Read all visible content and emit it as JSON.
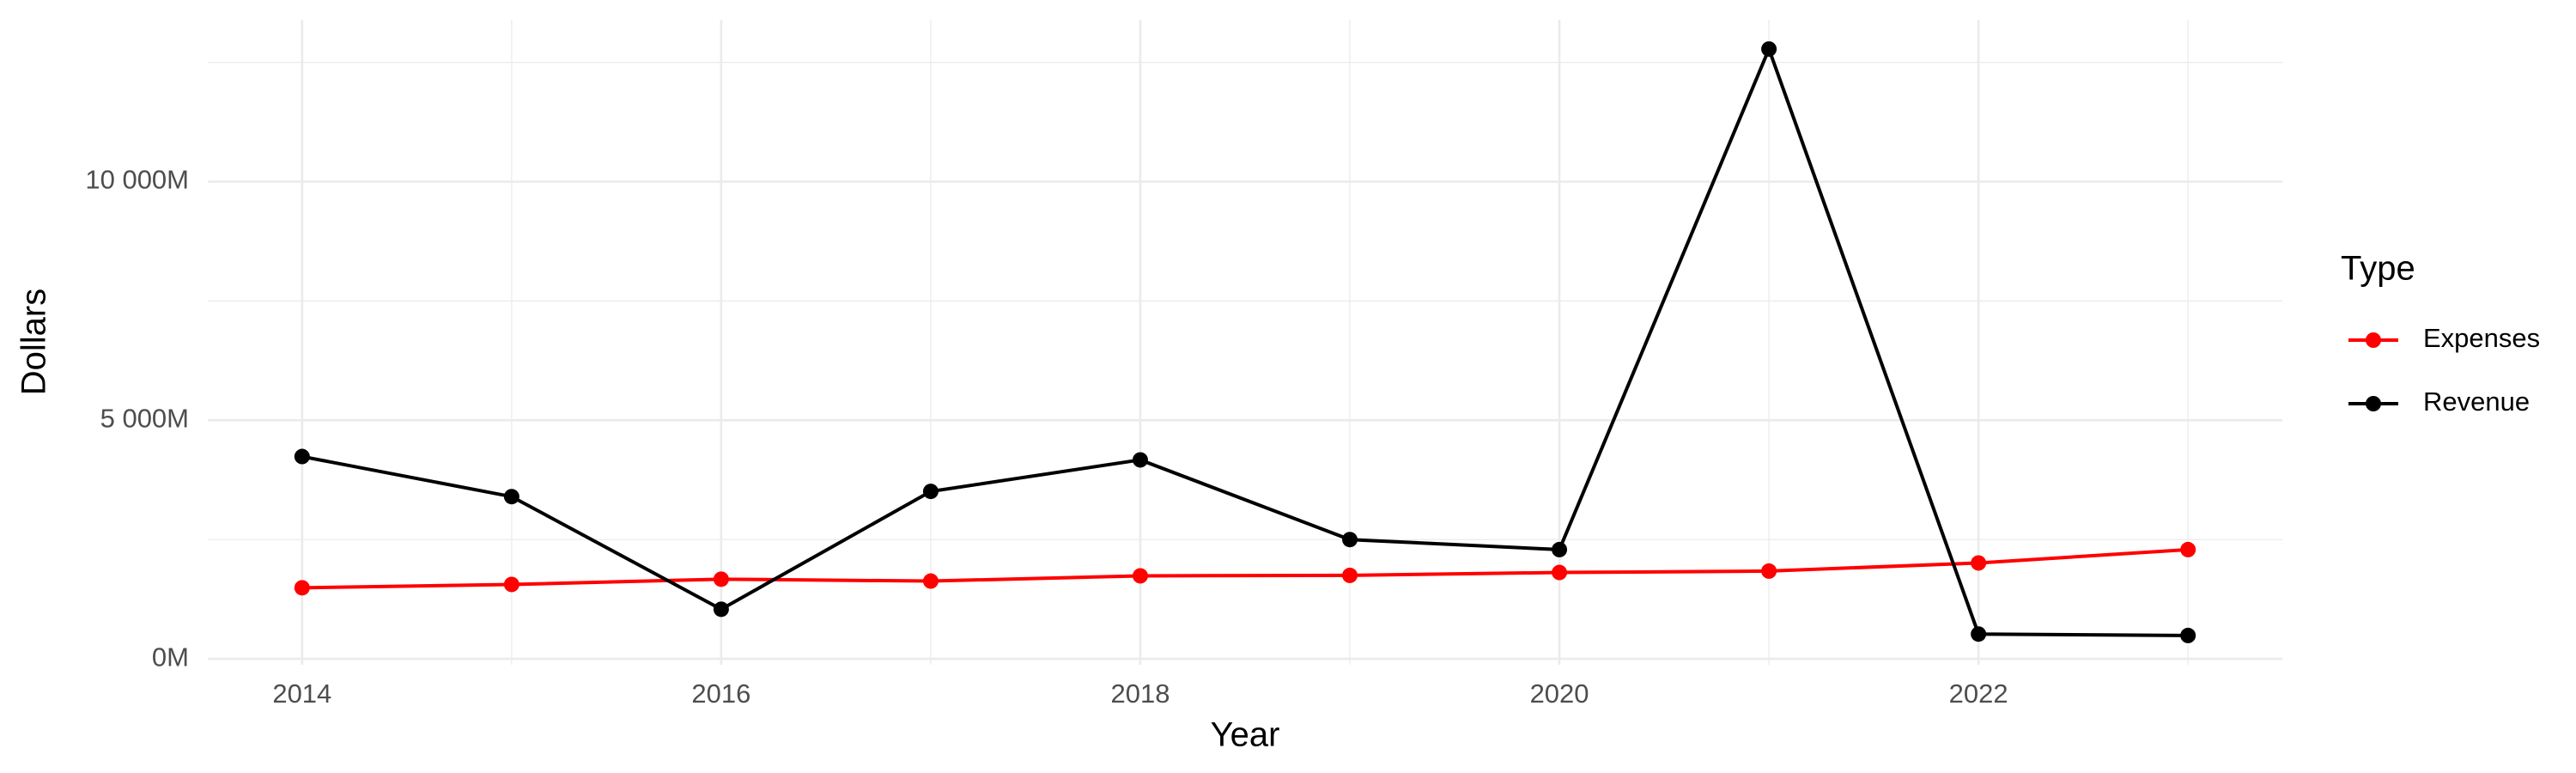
{
  "chart_data": {
    "type": "line",
    "x_label": "Year",
    "y_label": "Dollars",
    "legend_title": "Type",
    "x": [
      2014,
      2015,
      2016,
      2017,
      2018,
      2019,
      2020,
      2021,
      2022,
      2023
    ],
    "series": [
      {
        "name": "Expenses",
        "color": "#ff0000",
        "values": [
          1490,
          1560,
          1670,
          1630,
          1740,
          1750,
          1810,
          1840,
          2010,
          2290
        ]
      },
      {
        "name": "Revenue",
        "color": "#000000",
        "values": [
          4240,
          3400,
          1040,
          3510,
          4170,
          2500,
          2290,
          12780,
          520,
          490
        ]
      }
    ],
    "xlim": [
      2013.55,
      2023.45
    ],
    "xticks": [
      2014,
      2016,
      2018,
      2020,
      2022
    ],
    "ylim": [
      -124,
      13394
    ],
    "yticks": [
      {
        "value": 0,
        "label": "0M"
      },
      {
        "value": 5000,
        "label": "5 000M"
      },
      {
        "value": 10000,
        "label": "10 000M"
      }
    ],
    "grid": true,
    "legend": "right"
  }
}
